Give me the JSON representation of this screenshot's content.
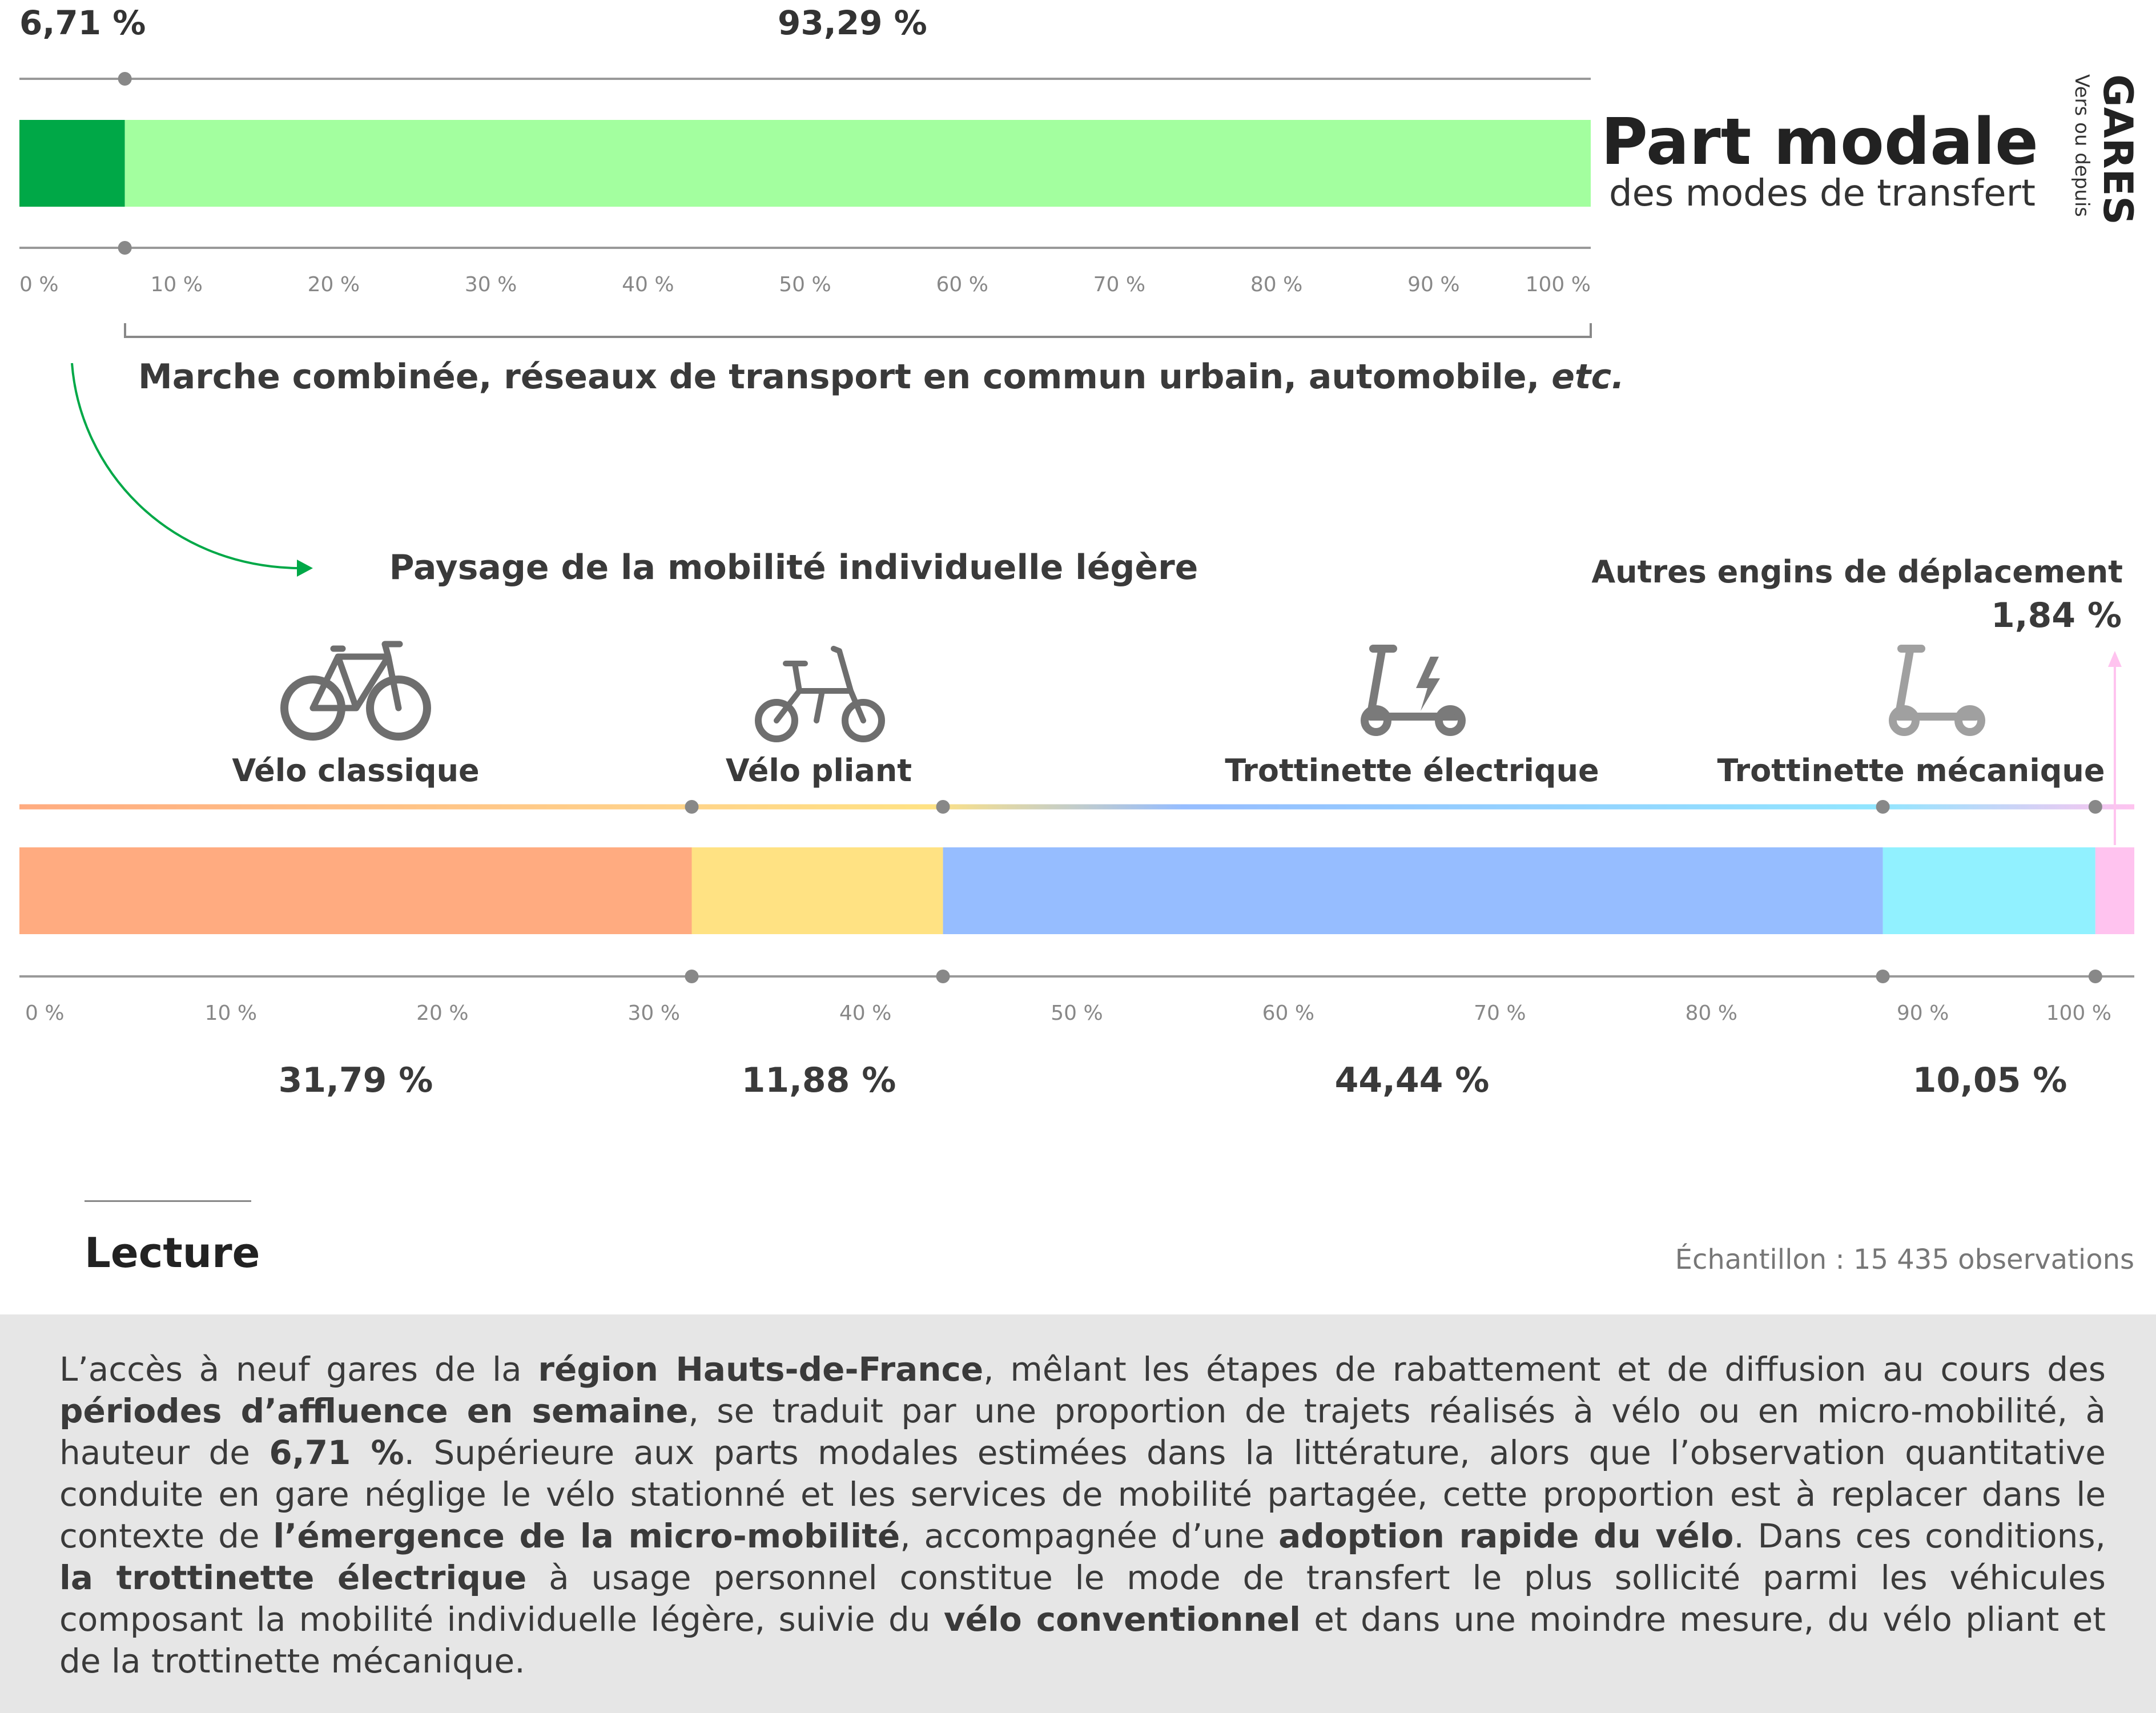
{
  "header": {
    "title": "Part modale",
    "subtitle": "des modes de transfert",
    "side_title": "GARES",
    "side_subtitle": "Vers ou depuis"
  },
  "chart_data": [
    {
      "type": "bar",
      "orientation": "horizontal-stacked",
      "segments": [
        {
          "value": 6.71,
          "label": "6,71 %",
          "color": "#00a847"
        },
        {
          "value": 93.29,
          "label": "93,29 %",
          "color": "#a3ff9f"
        }
      ],
      "ticks": [
        "0 %",
        "10 %",
        "20 %",
        "30 %",
        "40 %",
        "50 %",
        "60 %",
        "70 %",
        "80 %",
        "90 %",
        "100 %"
      ],
      "xlim": [
        0,
        100
      ],
      "annotation": "Marche combinée, réseaux de transport en commun urbain, automobile, ",
      "annotation_italic": "etc."
    },
    {
      "type": "bar",
      "orientation": "horizontal-stacked",
      "title": "Paysage de la mobilité individuelle légère",
      "segments": [
        {
          "name": "Vélo classique",
          "value": 31.79,
          "label": "31,79 %",
          "color": "#ffab80",
          "icon": "bicycle-icon"
        },
        {
          "name": "Vélo pliant",
          "value": 11.88,
          "label": "11,88 %",
          "color": "#ffe283",
          "icon": "folding-bike-icon"
        },
        {
          "name": "Trottinette électrique",
          "value": 44.44,
          "label": "44,44 %",
          "color": "#96bdff",
          "icon": "electric-scooter-icon"
        },
        {
          "name": "Trottinette mécanique",
          "value": 10.05,
          "label": "10,05 %",
          "color": "#91f1ff",
          "icon": "kick-scooter-icon"
        },
        {
          "name": "Autres engins de déplacement",
          "value": 1.84,
          "label": "1,84 %",
          "color": "#ffc3ef"
        }
      ],
      "ticks": [
        "0 %",
        "10 %",
        "20 %",
        "30 %",
        "40 %",
        "50 %",
        "60 %",
        "70 %",
        "80 %",
        "90 %",
        "100 %"
      ],
      "xlim": [
        0,
        100
      ]
    }
  ],
  "lecture": {
    "title": "Lecture",
    "sample": "Échantillon : 15 435 observations",
    "paragraph": [
      {
        "t": "L’accès à neuf gares de la "
      },
      {
        "t": "région Hauts-de-France",
        "b": true
      },
      {
        "t": ", mêlant les étapes de rabattement et de diffusion au cours des "
      },
      {
        "t": "périodes d’affluence en semaine",
        "b": true
      },
      {
        "t": ", se traduit par une proportion de trajets réalisés à vélo ou en micro-mobilité, à hauteur de "
      },
      {
        "t": "6,71 %",
        "b": true
      },
      {
        "t": ". Supérieure aux parts modales estimées dans la littérature, alors que l’observation quantitative conduite en gare néglige le vélo stationné et les services de mobilité partagée, cette proportion est à replacer dans le contexte de "
      },
      {
        "t": "l’émergence de la micro-mobilité",
        "b": true
      },
      {
        "t": ", accompagnée d’une "
      },
      {
        "t": "adoption rapide du vélo",
        "b": true
      },
      {
        "t": ". Dans ces conditions, "
      },
      {
        "t": "la trottinette électrique",
        "b": true
      },
      {
        "t": " à usage personnel constitue le mode de transfert le plus sollicité parmi les véhicules composant la mobilité individuelle légère, suivie du "
      },
      {
        "t": "vélo conventionnel",
        "b": true
      },
      {
        "t": " et dans une moindre mesure, du vélo pliant et de la trottinette mécanique."
      }
    ]
  }
}
